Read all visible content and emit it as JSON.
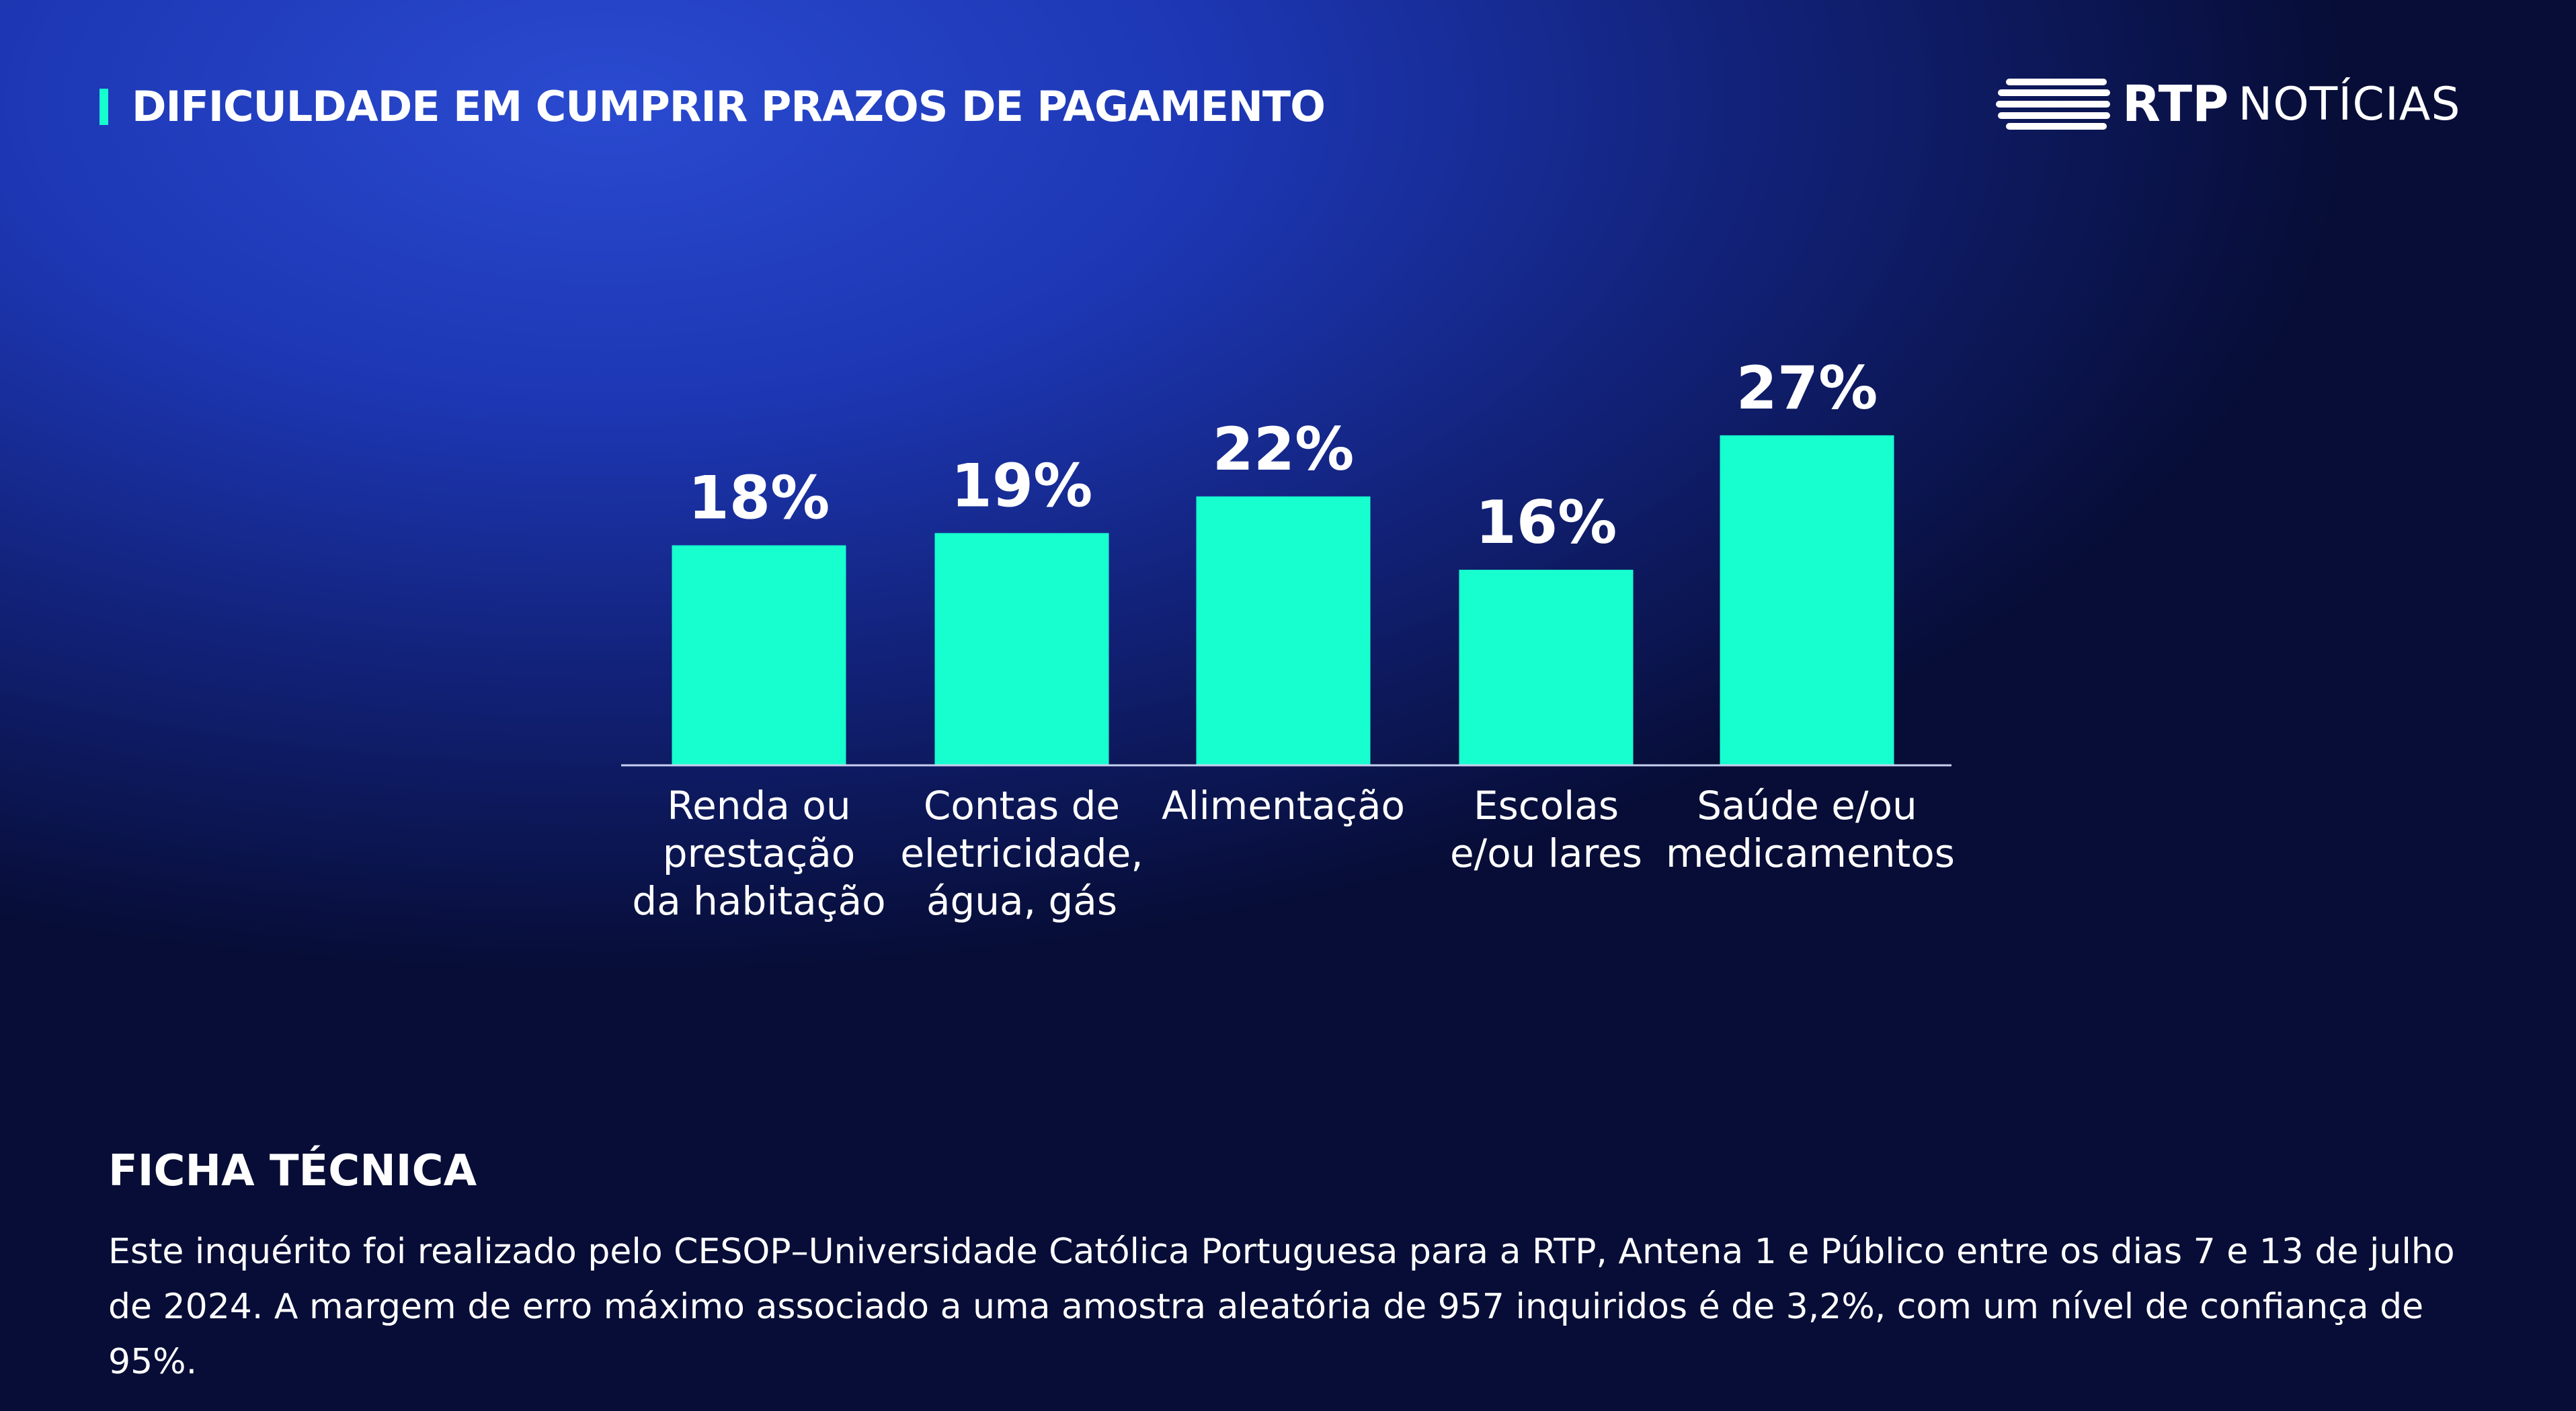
{
  "header": {
    "title": "DIFICULDADE EM CUMPRIR PRAZOS DE PAGAMENTO"
  },
  "logo": {
    "brand": "RTP",
    "section": "NOTÍCIAS"
  },
  "chart_data": {
    "type": "bar",
    "categories": [
      "Renda ou\nprestação\nda habitação",
      "Contas de\neletricidade,\nágua, gás",
      "Alimentação",
      "Escolas\ne/ou lares",
      "Saúde e/ou\nmedicamentos"
    ],
    "values": [
      18,
      19,
      22,
      16,
      27
    ],
    "value_labels": [
      "18%",
      "19%",
      "22%",
      "16%",
      "27%"
    ],
    "color": "#17ffcf",
    "ylim": [
      0,
      30
    ]
  },
  "footer": {
    "heading": "FICHA TÉCNICA",
    "text": "Este inquérito foi realizado pelo CESOP–Universidade Católica Portuguesa para a RTP, Antena 1 e Público  entre os dias 7 e 13 de julho de 2024. A margem de erro máximo associado a uma amostra aleatória de 957 inquiridos é de 3,2%, com um nível de confiança de 95%."
  }
}
